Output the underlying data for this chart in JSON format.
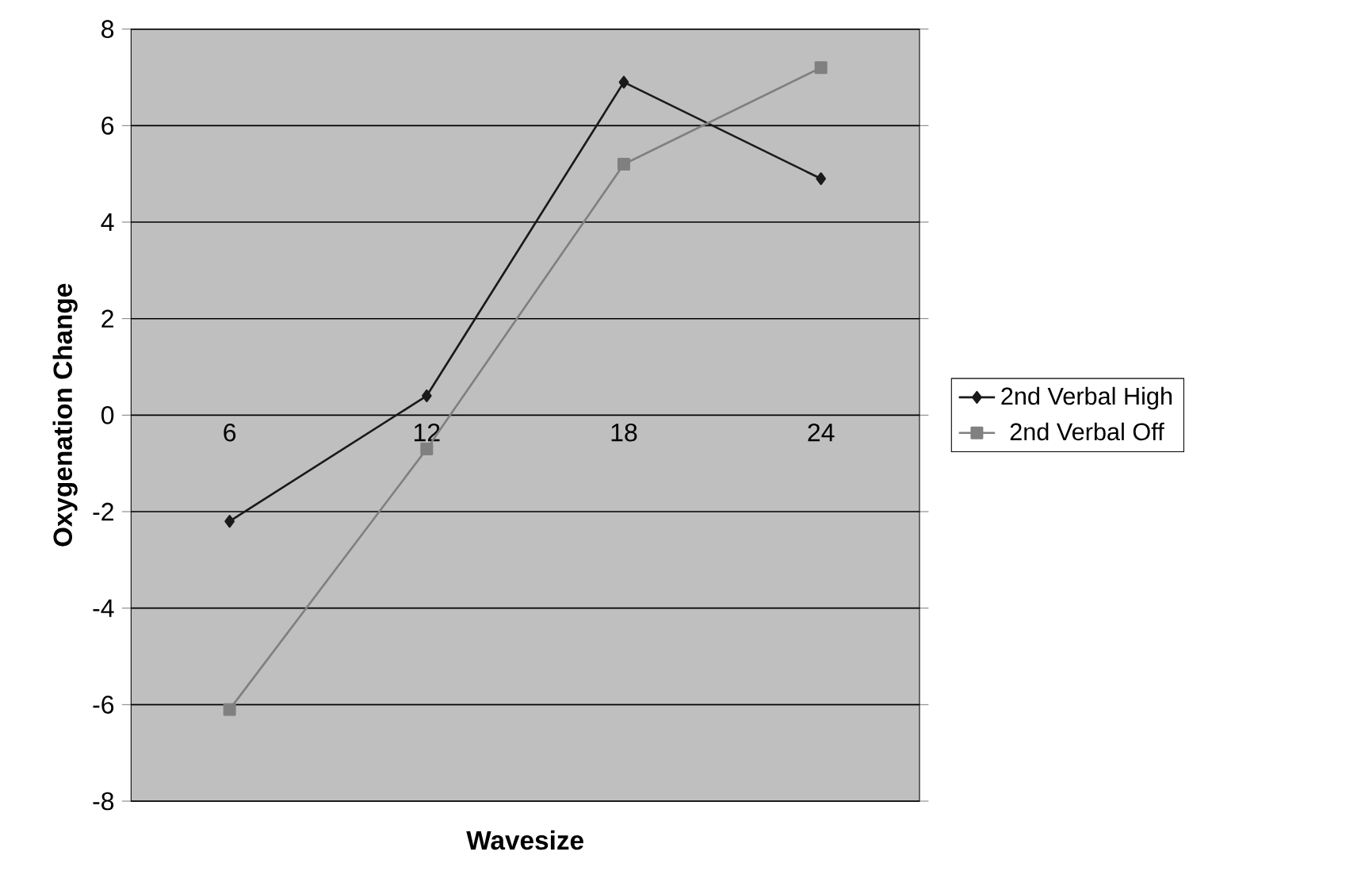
{
  "chart_data": {
    "type": "line",
    "xlabel": "Wavesize",
    "ylabel": "Oxygenation Change",
    "categories": [
      "6",
      "12",
      "18",
      "24"
    ],
    "series": [
      {
        "name": "2nd Verbal High",
        "color": "#1a1a1a",
        "marker": "diamond",
        "values": [
          -2.2,
          0.4,
          6.9,
          4.9
        ]
      },
      {
        "name": "2nd Verbal Off",
        "color": "#808080",
        "marker": "square",
        "values": [
          -6.1,
          -0.7,
          5.2,
          7.2
        ]
      }
    ],
    "ylim": [
      -8,
      8
    ],
    "yticks": [
      -8,
      -6,
      -4,
      -2,
      0,
      2,
      4,
      6,
      8
    ],
    "grid": "y",
    "legend": "right"
  }
}
